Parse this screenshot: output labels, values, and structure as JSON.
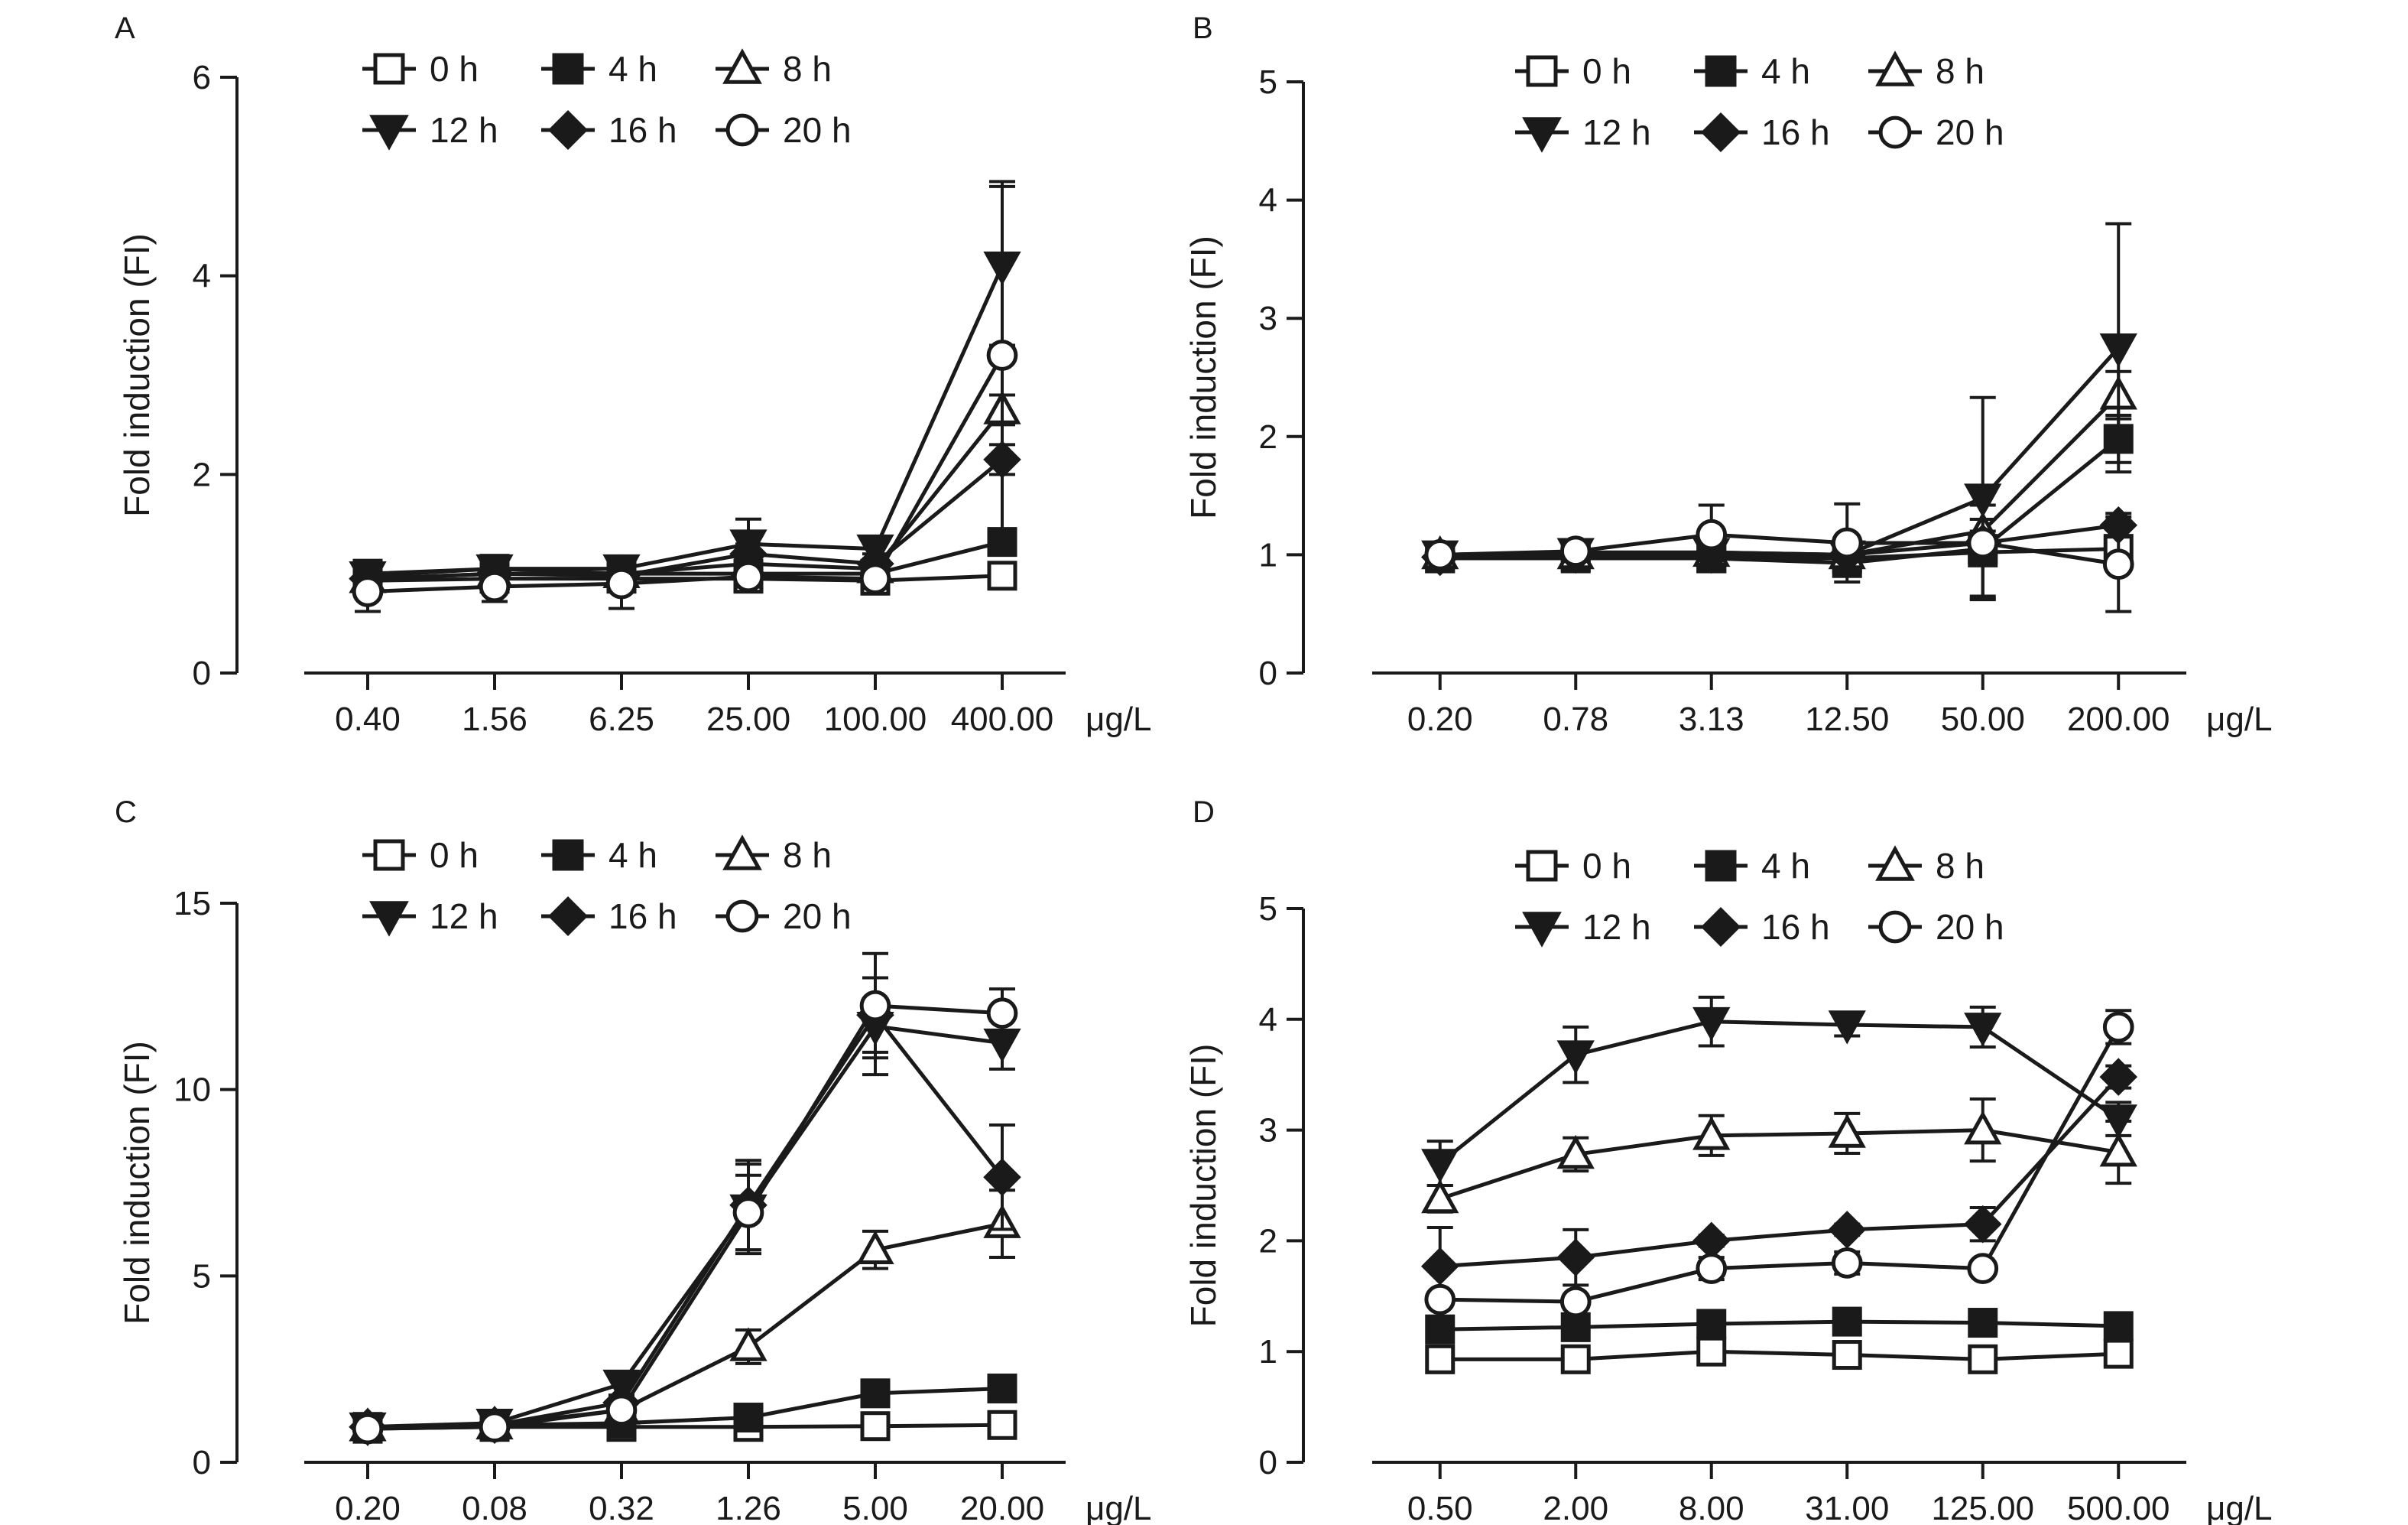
{
  "chart_data": [
    {
      "type": "line",
      "panel_label": "A",
      "ylabel": "Fold induction (FI)",
      "xunit": "μg/L",
      "categories": [
        "0.40",
        "1.56",
        "6.25",
        "25.00",
        "100.00",
        "400.00"
      ],
      "ylim": [
        0,
        6
      ],
      "yticks": [
        0,
        2,
        4,
        6
      ],
      "legend_position": "top",
      "series": [
        {
          "name": "0 h",
          "marker": "square-open",
          "values": [
            0.93,
            0.95,
            0.95,
            0.95,
            0.93,
            0.98
          ],
          "errors": [
            0.05,
            0.05,
            0.05,
            0.05,
            0.05,
            0.05
          ]
        },
        {
          "name": "4 h",
          "marker": "square-filled",
          "values": [
            1.0,
            1.05,
            1.0,
            1.0,
            1.0,
            1.32
          ],
          "errors": [
            0.05,
            0.05,
            0.05,
            0.05,
            0.05,
            0.1
          ]
        },
        {
          "name": "8 h",
          "marker": "triangle-up-open",
          "values": [
            0.95,
            1.0,
            1.0,
            1.1,
            1.05,
            2.65
          ],
          "errors": [
            0.05,
            0.05,
            0.1,
            0.1,
            0.1,
            0.15
          ]
        },
        {
          "name": "12 h",
          "marker": "triangle-down-filled",
          "values": [
            0.98,
            1.05,
            1.05,
            1.3,
            1.25,
            4.1
          ],
          "errors": [
            0.05,
            0.05,
            0.1,
            0.25,
            0.1,
            0.8
          ]
        },
        {
          "name": "16 h",
          "marker": "diamond-filled",
          "values": [
            0.95,
            1.0,
            0.98,
            1.2,
            1.1,
            2.15
          ],
          "errors": [
            0.05,
            0.05,
            0.1,
            0.1,
            0.1,
            0.15
          ]
        },
        {
          "name": "20 h",
          "marker": "circle-open",
          "values": [
            0.82,
            0.87,
            0.9,
            0.97,
            0.95,
            3.2
          ],
          "errors": [
            0.2,
            0.15,
            0.25,
            0.15,
            0.1,
            1.75
          ]
        }
      ]
    },
    {
      "type": "line",
      "panel_label": "B",
      "ylabel": "Fold induction (FI)",
      "xunit": "μg/L",
      "categories": [
        "0.20",
        "0.78",
        "3.13",
        "12.50",
        "50.00",
        "200.00"
      ],
      "ylim": [
        0,
        5
      ],
      "yticks": [
        0,
        1,
        2,
        3,
        4,
        5
      ],
      "legend_position": "top",
      "series": [
        {
          "name": "0 h",
          "marker": "square-open",
          "values": [
            0.97,
            0.97,
            0.97,
            0.97,
            1.02,
            1.05
          ],
          "errors": [
            0.05,
            0.05,
            0.05,
            0.05,
            0.4,
            0.05
          ]
        },
        {
          "name": "4 h",
          "marker": "square-filled",
          "values": [
            0.97,
            0.98,
            0.97,
            0.93,
            1.05,
            1.98
          ],
          "errors": [
            0.05,
            0.05,
            0.1,
            0.05,
            0.05,
            0.2
          ]
        },
        {
          "name": "8 h",
          "marker": "triangle-up-open",
          "values": [
            1.0,
            1.0,
            1.02,
            1.0,
            1.2,
            2.35
          ],
          "errors": [
            0.05,
            0.05,
            0.1,
            0.05,
            0.1,
            0.2
          ]
        },
        {
          "name": "12 h",
          "marker": "triangle-down-filled",
          "values": [
            1.0,
            1.02,
            1.02,
            1.0,
            1.48,
            2.75
          ],
          "errors": [
            0.05,
            0.05,
            0.1,
            0.05,
            0.85,
            1.05
          ]
        },
        {
          "name": "16 h",
          "marker": "diamond-filled",
          "values": [
            0.98,
            1.0,
            1.0,
            1.0,
            1.1,
            1.25
          ],
          "errors": [
            0.05,
            0.05,
            0.05,
            0.05,
            0.1,
            0.1
          ]
        },
        {
          "name": "20 h",
          "marker": "circle-open",
          "values": [
            1.0,
            1.03,
            1.17,
            1.1,
            1.1,
            0.92
          ],
          "errors": [
            0.05,
            0.05,
            0.25,
            0.33,
            0.45,
            0.4
          ]
        }
      ]
    },
    {
      "type": "line",
      "panel_label": "C",
      "ylabel": "Fold induction (FI)",
      "xunit": "μg/L",
      "categories": [
        "0.20",
        "0.08",
        "0.32",
        "1.26",
        "5.00",
        "20.00"
      ],
      "ylim": [
        0,
        15
      ],
      "yticks": [
        0,
        5,
        10,
        15
      ],
      "legend_position": "top",
      "series": [
        {
          "name": "0 h",
          "marker": "square-open",
          "values": [
            0.9,
            0.95,
            0.95,
            0.95,
            0.97,
            1.0
          ],
          "errors": [
            0.1,
            0.1,
            0.1,
            0.1,
            0.1,
            0.1
          ]
        },
        {
          "name": "4 h",
          "marker": "square-filled",
          "values": [
            0.95,
            1.0,
            1.05,
            1.2,
            1.85,
            1.98
          ],
          "errors": [
            0.1,
            0.1,
            0.1,
            0.15,
            0.2,
            0.2
          ]
        },
        {
          "name": "8 h",
          "marker": "triangle-up-open",
          "values": [
            0.95,
            1.0,
            1.4,
            3.1,
            5.7,
            6.4
          ],
          "errors": [
            0.1,
            0.1,
            0.2,
            0.45,
            0.5,
            0.9
          ]
        },
        {
          "name": "12 h",
          "marker": "triangle-down-filled",
          "values": [
            0.95,
            1.05,
            2.1,
            6.8,
            11.7,
            11.25
          ],
          "errors": [
            0.1,
            0.1,
            0.3,
            1.2,
            1.3,
            0.7
          ]
        },
        {
          "name": "16 h",
          "marker": "diamond-filled",
          "values": [
            0.95,
            1.0,
            1.6,
            6.9,
            12.0,
            7.65
          ],
          "errors": [
            0.1,
            0.1,
            0.2,
            1.2,
            1.0,
            1.4
          ]
        },
        {
          "name": "20 h",
          "marker": "circle-open",
          "values": [
            0.9,
            0.95,
            1.4,
            6.7,
            12.25,
            12.05
          ],
          "errors": [
            0.1,
            0.1,
            0.3,
            1.0,
            1.4,
            0.65
          ]
        }
      ]
    },
    {
      "type": "line",
      "panel_label": "D",
      "ylabel": "Fold induction (FI)",
      "xunit": "μg/L",
      "categories": [
        "0.50",
        "2.00",
        "8.00",
        "31.00",
        "125.00",
        "500.00"
      ],
      "ylim": [
        0,
        5
      ],
      "yticks": [
        0,
        1,
        2,
        3,
        4,
        5
      ],
      "legend_position": "top",
      "series": [
        {
          "name": "0 h",
          "marker": "square-open",
          "values": [
            0.93,
            0.93,
            1.0,
            0.97,
            0.93,
            0.98
          ],
          "errors": [
            0.05,
            0.05,
            0.05,
            0.05,
            0.05,
            0.05
          ]
        },
        {
          "name": "4 h",
          "marker": "square-filled",
          "values": [
            1.2,
            1.22,
            1.25,
            1.27,
            1.26,
            1.23
          ],
          "errors": [
            0.05,
            0.05,
            0.05,
            0.05,
            0.05,
            0.05
          ]
        },
        {
          "name": "8 h",
          "marker": "triangle-up-open",
          "values": [
            2.38,
            2.78,
            2.95,
            2.97,
            3.0,
            2.8
          ],
          "errors": [
            0.12,
            0.15,
            0.18,
            0.18,
            0.28,
            0.28
          ]
        },
        {
          "name": "12 h",
          "marker": "triangle-down-filled",
          "values": [
            2.7,
            3.68,
            3.98,
            3.95,
            3.93,
            3.1
          ],
          "errors": [
            0.2,
            0.25,
            0.22,
            0.1,
            0.18,
            0.15
          ]
        },
        {
          "name": "16 h",
          "marker": "diamond-filled",
          "values": [
            1.77,
            1.85,
            2.0,
            2.1,
            2.15,
            3.48
          ],
          "errors": [
            0.35,
            0.25,
            0.05,
            0.05,
            0.15,
            0.1
          ]
        },
        {
          "name": "20 h",
          "marker": "circle-open",
          "values": [
            1.47,
            1.45,
            1.75,
            1.8,
            1.75,
            3.93
          ],
          "errors": [
            0.05,
            0.05,
            0.1,
            0.1,
            0.05,
            0.15
          ]
        }
      ]
    }
  ]
}
